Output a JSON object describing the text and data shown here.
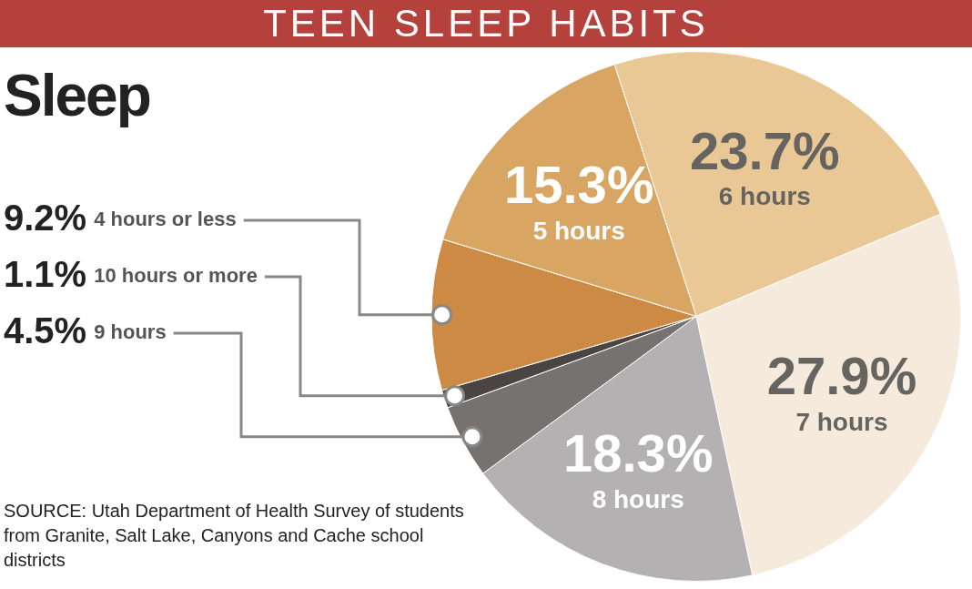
{
  "chart_data": {
    "type": "pie",
    "title": "TEEN SLEEP HABITS",
    "subtitle": "Sleep",
    "categories": [
      "6 hours",
      "7 hours",
      "8 hours",
      "9 hours",
      "10 hours or more",
      "4 hours or less",
      "5 hours"
    ],
    "values": [
      23.7,
      27.9,
      18.3,
      4.5,
      1.1,
      9.2,
      15.3
    ],
    "value_labels": [
      "23.7%",
      "27.9%",
      "18.3%",
      "4.5%",
      "1.1%",
      "9.2%",
      "15.3%"
    ],
    "colors": [
      "#e9c896",
      "#f5eadb",
      "#b3b1b1",
      "#767270",
      "#4a4542",
      "#cc8a44",
      "#d9a562"
    ],
    "annotations": [
      "SOURCE: Utah Department of Health Survey of students from Granite, Salt Lake, Canyons and Cache school districts"
    ]
  }
}
